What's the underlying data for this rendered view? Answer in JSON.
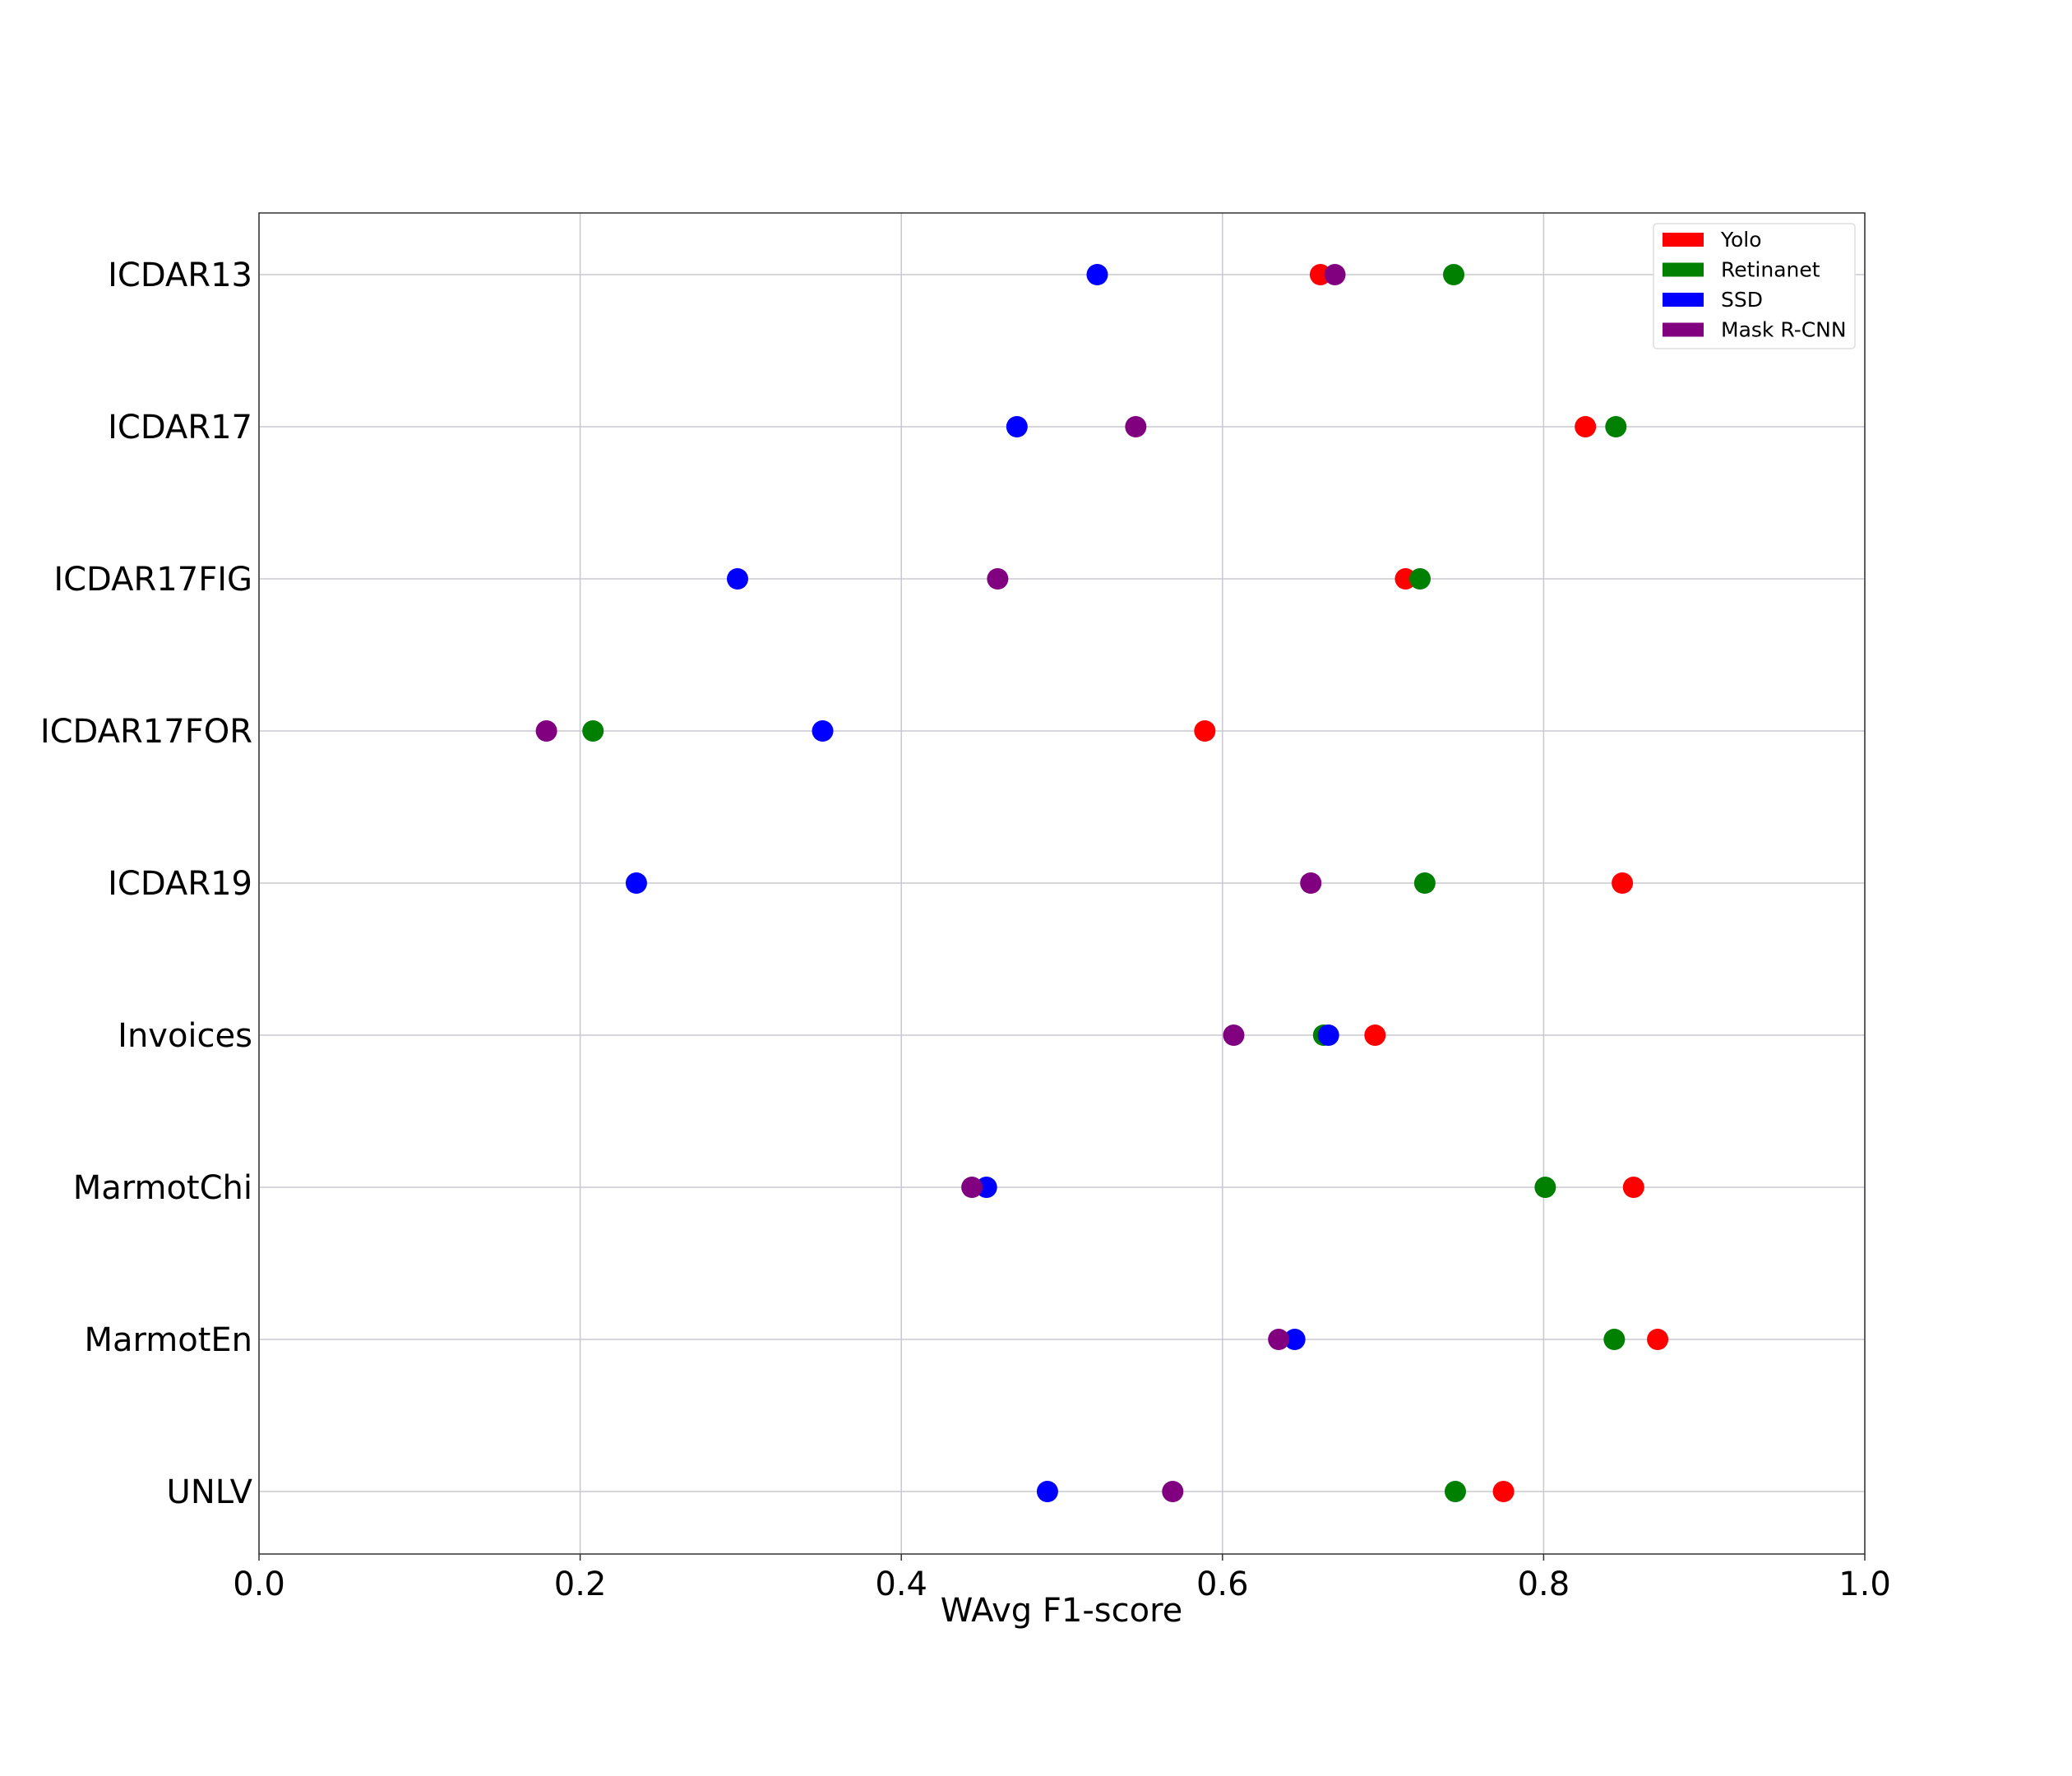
{
  "chart_data": {
    "type": "scatter",
    "title": "",
    "xlabel": "WAvg F1-score",
    "ylabel": "",
    "xlim": [
      0.0,
      1.0
    ],
    "xticks": [
      "0.0",
      "0.2",
      "0.4",
      "0.6",
      "0.8",
      "1.0"
    ],
    "grid": true,
    "legend_placement": "top-right",
    "categories": [
      "ICDAR13",
      "ICDAR17",
      "ICDAR17FIG",
      "ICDAR17FOR",
      "ICDAR19",
      "Invoices",
      "MarmotChi",
      "MarmotEn",
      "UNLV"
    ],
    "series": [
      {
        "name": "Yolo",
        "color": "#ff0000",
        "values": [
          0.661,
          0.826,
          0.714,
          0.589,
          0.849,
          0.695,
          0.856,
          0.871,
          0.775
        ]
      },
      {
        "name": "Retinanet",
        "color": "#008000",
        "values": [
          0.744,
          0.845,
          0.723,
          0.208,
          0.726,
          0.663,
          0.801,
          0.844,
          0.745
        ]
      },
      {
        "name": "SSD",
        "color": "#0000ff",
        "values": [
          0.522,
          0.472,
          0.298,
          0.351,
          0.235,
          0.666,
          0.453,
          0.645,
          0.491
        ]
      },
      {
        "name": "Mask R-CNN",
        "color": "#800080",
        "values": [
          0.67,
          0.546,
          0.46,
          0.179,
          0.655,
          0.607,
          0.444,
          0.635,
          0.569
        ]
      }
    ]
  }
}
